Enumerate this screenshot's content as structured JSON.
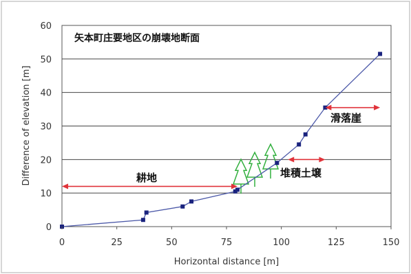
{
  "chart_data": {
    "type": "line",
    "title": "矢本町庄要地区の崩壊地断面",
    "xlabel": "Horizontal distance [m]",
    "ylabel": "Difference of elevation [m]",
    "xlim": [
      0,
      150
    ],
    "ylim": [
      0,
      60
    ],
    "x_ticks": [
      "0",
      "25",
      "50",
      "75",
      "100",
      "125",
      "150"
    ],
    "y_ticks": [
      "0",
      "10",
      "20",
      "30",
      "40",
      "50",
      "60"
    ],
    "grid": "horizontal",
    "series": [
      {
        "color": "#4b58a8",
        "x": [
          0,
          37,
          38.5,
          55,
          59,
          79,
          80,
          98,
          108,
          111,
          120,
          145
        ],
        "y": [
          0,
          2,
          4.2,
          6,
          7.5,
          10.5,
          11,
          19,
          24.5,
          27.5,
          35.5,
          51.5
        ]
      }
    ],
    "annotations": [
      {
        "text": "耕地",
        "arrow": "double",
        "x_from": 0,
        "x_to": 80,
        "y": 12,
        "color": "#e0333a"
      },
      {
        "text": "堆積土壌",
        "arrow": "double",
        "x_from": 103,
        "x_to": 120,
        "y": 20,
        "color": "#e0333a"
      },
      {
        "text": "滑落崖",
        "arrow": "double",
        "x_from": 120,
        "x_to": 145,
        "y": 35.5,
        "color": "#e0333a"
      }
    ]
  }
}
